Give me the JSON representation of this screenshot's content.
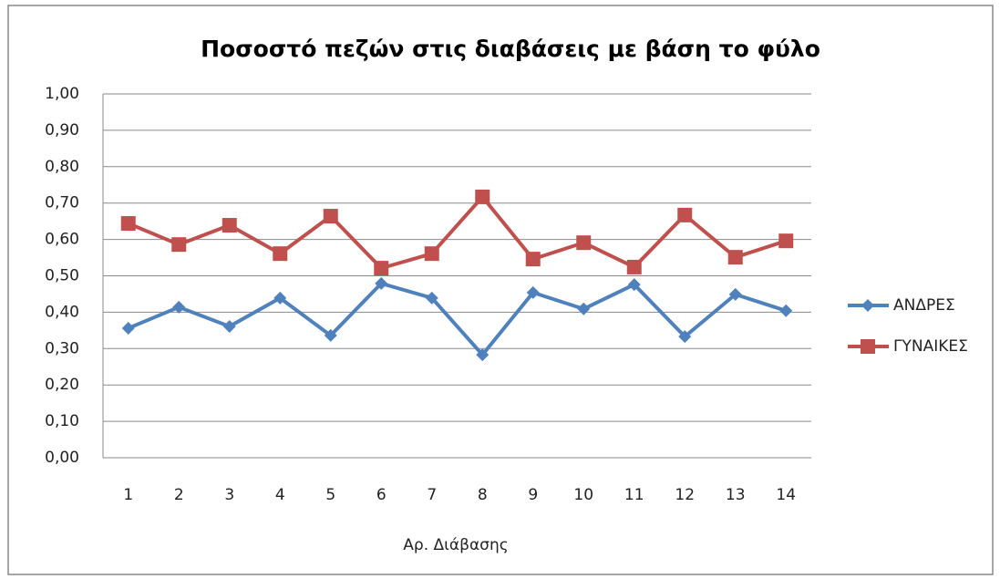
{
  "chart_data": {
    "type": "line",
    "title": "Ποσοστό πεζών στις διαβάσεις με βάση το φύλο",
    "x_label": "Αρ. Διάβασης",
    "categories": [
      "1",
      "2",
      "3",
      "4",
      "5",
      "6",
      "7",
      "8",
      "9",
      "10",
      "11",
      "12",
      "13",
      "14"
    ],
    "series": [
      {
        "name": "ΑΝΔΡΕΣ",
        "color": "#4f81bd",
        "marker": "diamond",
        "values": [
          0.356,
          0.414,
          0.361,
          0.439,
          0.336,
          0.479,
          0.439,
          0.283,
          0.454,
          0.409,
          0.476,
          0.333,
          0.449,
          0.404
        ]
      },
      {
        "name": "ΓΥΝΑΙΚΕΣ",
        "color": "#c0504d",
        "marker": "square",
        "values": [
          0.644,
          0.586,
          0.639,
          0.561,
          0.664,
          0.521,
          0.561,
          0.717,
          0.546,
          0.591,
          0.524,
          0.667,
          0.551,
          0.596
        ]
      }
    ],
    "ylim": [
      0,
      1
    ],
    "yticks": [
      {
        "value": 0,
        "label": "0,00"
      },
      {
        "value": 0.1,
        "label": "0,10"
      },
      {
        "value": 0.2,
        "label": "0,20"
      },
      {
        "value": 0.3,
        "label": "0,30"
      },
      {
        "value": 0.4,
        "label": "0,40"
      },
      {
        "value": 0.5,
        "label": "0,50"
      },
      {
        "value": 0.6,
        "label": "0,60"
      },
      {
        "value": 0.7,
        "label": "0,70"
      },
      {
        "value": 0.8,
        "label": "0,80"
      },
      {
        "value": 0.9,
        "label": "0,90"
      },
      {
        "value": 1,
        "label": "1,00"
      }
    ],
    "grid": true,
    "legend": "right"
  }
}
